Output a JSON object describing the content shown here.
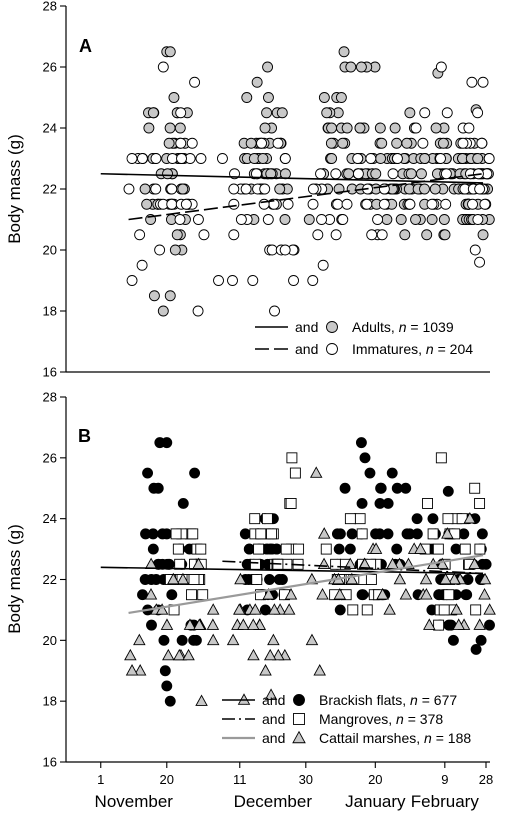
{
  "chart_data": [
    {
      "panel": "A",
      "type": "scatter",
      "ylabel": "Body mass (g)",
      "ylim": [
        16,
        28
      ],
      "yticks": [
        16,
        18,
        20,
        22,
        24,
        26,
        28
      ],
      "xlim": [
        -10,
        112
      ],
      "legend_position": "bottom-right",
      "series": [
        {
          "name": "Adults",
          "marker": "circle",
          "fill": "#c8c8c8",
          "legend_and": "and",
          "legend_n": "1039",
          "trend": {
            "style": "solid",
            "x": [
              0,
              110
            ],
            "y": [
              22.5,
              22.2
            ]
          },
          "clusters": [
            {
              "x": [
                12,
                26
              ],
              "y": [
                18,
                26.5
              ]
            },
            {
              "x": [
                41,
                54
              ],
              "y": [
                20,
                26
              ]
            },
            {
              "x": [
                64,
                79
              ],
              "y": [
                20.5,
                26.5
              ]
            },
            {
              "x": [
                79,
                92
              ],
              "y": [
                20,
                25
              ]
            },
            {
              "x": [
                92,
                106
              ],
              "y": [
                20,
                25
              ]
            },
            {
              "x": [
                104,
                112
              ],
              "y": [
                19.8,
                24.6
              ]
            }
          ],
          "points_estimated": [
            [
              19,
              26.5
            ],
            [
              20,
              26.5
            ],
            [
              18,
              18
            ],
            [
              20,
              18.5
            ],
            [
              15,
              23
            ],
            [
              22,
              24.5
            ],
            [
              45,
              25.5
            ],
            [
              48,
              26
            ],
            [
              60,
              21
            ],
            [
              70,
              26.5
            ],
            [
              75,
              26
            ],
            [
              97,
              25.8
            ],
            [
              108,
              24.6
            ],
            [
              110,
              20.5
            ]
          ]
        },
        {
          "name": "Immatures",
          "marker": "circle",
          "fill": "#ffffff",
          "legend_and": "and",
          "legend_n": "204",
          "trend": {
            "style": "dashed",
            "x": [
              8,
              110
            ],
            "y": [
              21.0,
              22.5
            ]
          },
          "clusters": [
            {
              "x": [
                8,
                30
              ],
              "y": [
                18,
                26
              ]
            },
            {
              "x": [
                33,
                58
              ],
              "y": [
                18,
                24
              ]
            },
            {
              "x": [
                61,
                92
              ],
              "y": [
                19,
                24.5
              ]
            },
            {
              "x": [
                92,
                112
              ],
              "y": [
                19.5,
                26
              ]
            }
          ],
          "points_estimated": [
            [
              9,
              19
            ],
            [
              18,
              26
            ],
            [
              28,
              18
            ],
            [
              27,
              25.5
            ],
            [
              50,
              18
            ],
            [
              51,
              23.5
            ],
            [
              61,
              19
            ],
            [
              64,
              19.5
            ],
            [
              98,
              26
            ],
            [
              110,
              25.5
            ],
            [
              109,
              19.6
            ]
          ]
        }
      ]
    },
    {
      "panel": "B",
      "type": "scatter",
      "ylabel": "Body mass (g)",
      "ylim": [
        16,
        28
      ],
      "yticks": [
        16,
        18,
        20,
        22,
        24,
        26,
        28
      ],
      "xlim": [
        -10,
        112
      ],
      "x_ticks": [
        {
          "x": 0,
          "label": "1"
        },
        {
          "x": 19,
          "label": "20"
        },
        {
          "x": 40,
          "label": "11"
        },
        {
          "x": 59,
          "label": "30"
        },
        {
          "x": 79,
          "label": "20"
        },
        {
          "x": 99,
          "label": "9"
        },
        {
          "x": 118,
          "label": "28"
        }
      ],
      "months": [
        "November",
        "December",
        "January",
        "February"
      ],
      "legend_position": "bottom-right",
      "series": [
        {
          "name": "Brackish flats",
          "marker": "circle",
          "fill": "#000000",
          "legend_and": "and",
          "legend_n": "677",
          "trend": {
            "style": "solid",
            "x": [
              0,
              110
            ],
            "y": [
              22.4,
              22.2
            ]
          },
          "clusters": [
            {
              "x": [
                12,
                28
              ],
              "y": [
                18,
                26.5
              ]
            },
            {
              "x": [
                41,
                53
              ],
              "y": [
                20,
                25
              ]
            },
            {
              "x": [
                68,
                92
              ],
              "y": [
                20,
                26.5
              ]
            },
            {
              "x": [
                95,
                112
              ],
              "y": [
                19,
                25.5
              ]
            }
          ],
          "points_estimated": [
            [
              17,
              26.5
            ],
            [
              19,
              26.5
            ],
            [
              19,
              18.5
            ],
            [
              20,
              18
            ],
            [
              27,
              25.5
            ],
            [
              75,
              26.5
            ],
            [
              100,
              24.9
            ],
            [
              108,
              19.7
            ]
          ]
        },
        {
          "name": "Mangroves",
          "marker": "square",
          "fill": "#ffffff",
          "legend_and": "and",
          "legend_n": "378",
          "trend": {
            "style": "dash-dot",
            "x": [
              35,
              110
            ],
            "y": [
              22.6,
              22.2
            ]
          },
          "clusters": [
            {
              "x": [
                20,
                30
              ],
              "y": [
                20,
                25
              ]
            },
            {
              "x": [
                44,
                57
              ],
              "y": [
                20,
                26
              ]
            },
            {
              "x": [
                64,
                80
              ],
              "y": [
                20,
                25
              ]
            },
            {
              "x": [
                92,
                112
              ],
              "y": [
                19.5,
                26
              ]
            }
          ],
          "points_estimated": [
            [
              55,
              26
            ],
            [
              56,
              25.5
            ],
            [
              98,
              26
            ],
            [
              109,
              24.5
            ]
          ]
        },
        {
          "name": "Cattail marshes",
          "marker": "triangle",
          "fill": "#c8c8c8",
          "legend_and": "and",
          "legend_n": "188",
          "trend": {
            "style": "solid-gray",
            "x": [
              8,
              110
            ],
            "y": [
              20.9,
              22.8
            ]
          },
          "clusters": [
            {
              "x": [
                8,
                33
              ],
              "y": [
                18,
                23.5
              ]
            },
            {
              "x": [
                36,
                55
              ],
              "y": [
                18,
                23
              ]
            },
            {
              "x": [
                59,
                90
              ],
              "y": [
                19,
                25.5
              ]
            },
            {
              "x": [
                90,
                112
              ],
              "y": [
                19.5,
                25
              ]
            }
          ],
          "points_estimated": [
            [
              9,
              19
            ],
            [
              29,
              18
            ],
            [
              63,
              19
            ],
            [
              62,
              25.5
            ],
            [
              49,
              18.2
            ]
          ]
        }
      ]
    }
  ]
}
